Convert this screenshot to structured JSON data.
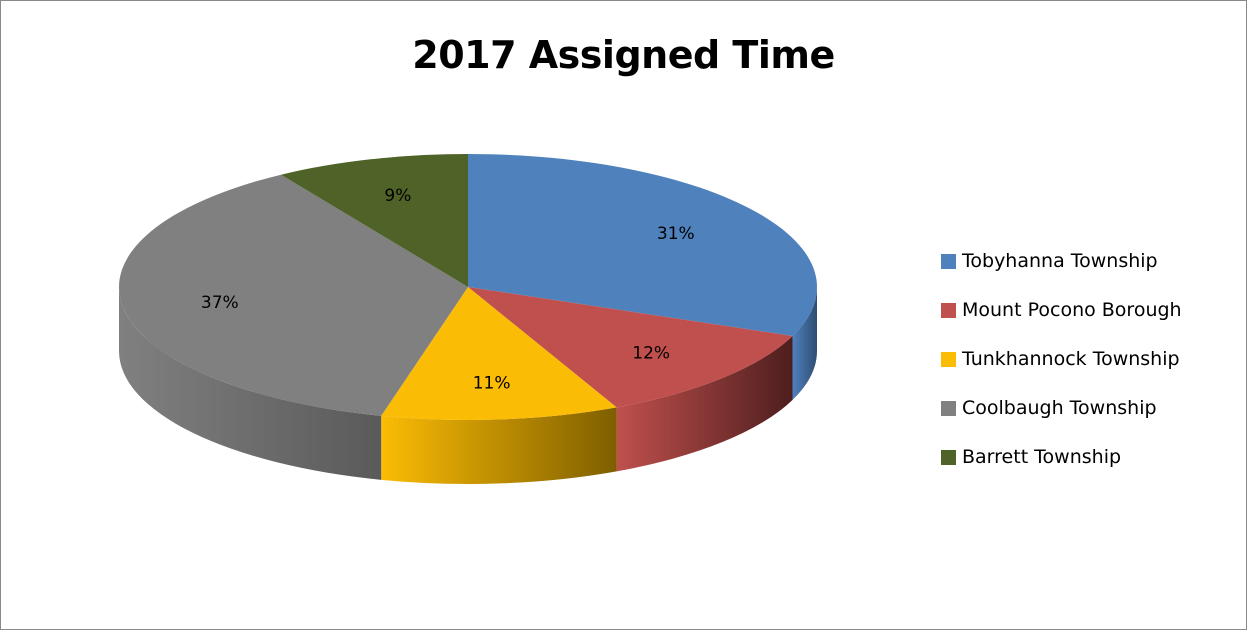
{
  "chart_data": {
    "type": "pie",
    "title": "2017 Assigned Time",
    "style": "3d",
    "legend_position": "right",
    "categories": [
      "Tobyhanna Township",
      "Mount Pocono Borough",
      "Tunkhannock Township",
      "Coolbaugh Township",
      "Barrett Township"
    ],
    "values": [
      31,
      12,
      11,
      37,
      9
    ],
    "data_labels": [
      "31%",
      "12%",
      "11%",
      "37%",
      "9%"
    ],
    "colors": [
      "#4F81BD",
      "#C0504D",
      "#FBBC05",
      "#808080",
      "#4F6228"
    ],
    "side_colors": [
      "#2F4D71",
      "#4E1E1E",
      "#7E5E00",
      "#5A5A5A",
      "#2E3A16"
    ]
  }
}
